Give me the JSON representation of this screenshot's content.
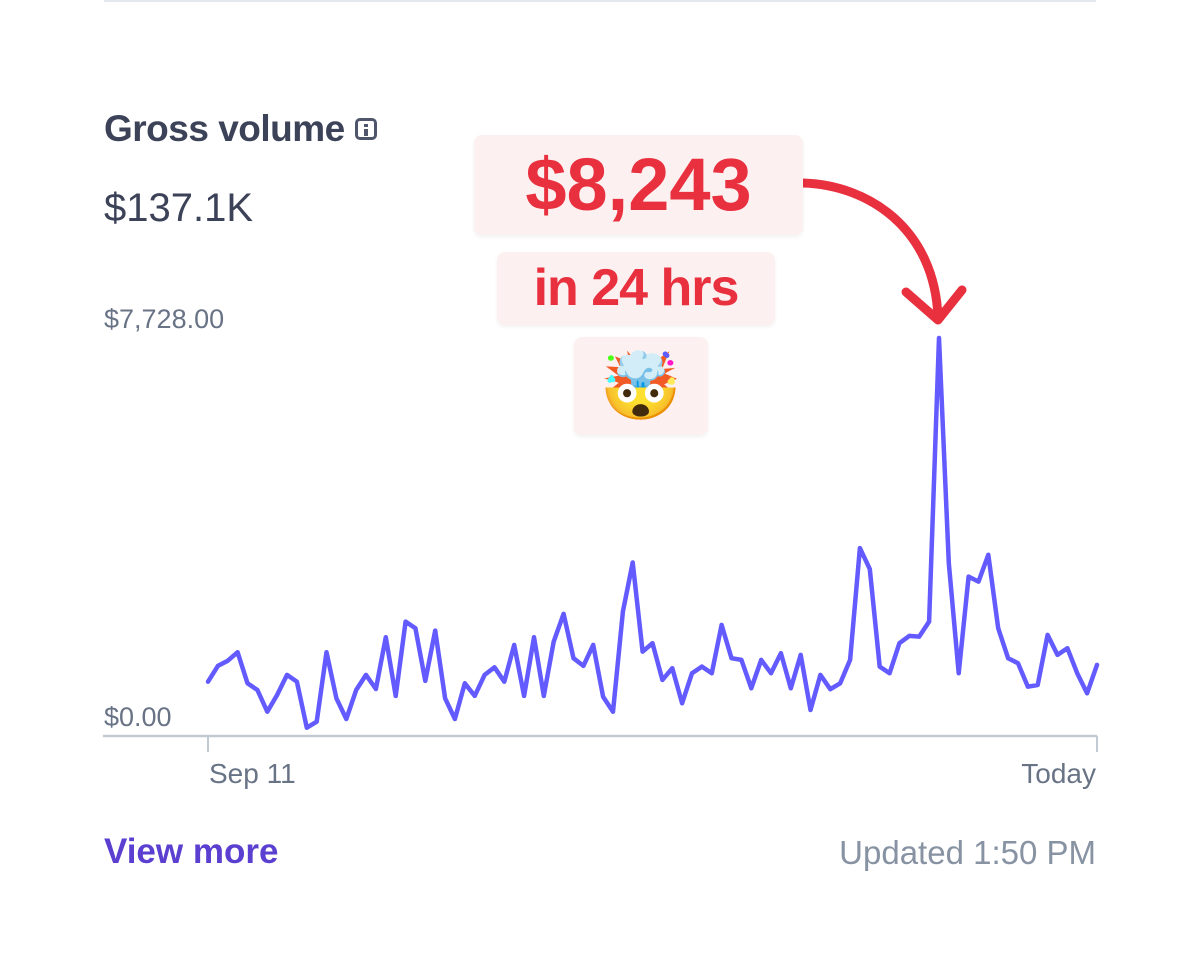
{
  "card": {
    "title": "Gross volume",
    "total": "$137.1K",
    "view_more": "View more",
    "updated": "Updated 1:50 PM"
  },
  "annotation": {
    "amount": "$8,243",
    "period": "in 24 hrs",
    "emoji": "🤯",
    "color": "#e8303f",
    "background": "#fdf0f0"
  },
  "chart_data": {
    "type": "line",
    "color": "#635bff",
    "y_labels": [
      "$7,728.00",
      "$0.00"
    ],
    "x_labels": [
      "Sep 11",
      "Today"
    ],
    "ylim": [
      0,
      7728
    ],
    "grid": false,
    "values": [
      1067,
      1372,
      1474,
      1637,
      1036,
      906,
      485,
      809,
      1197,
      1067,
      175,
      291,
      1637,
      745,
      343,
      906,
      1197,
      925,
      1928,
      790,
      2231,
      2103,
      1081,
      2056,
      745,
      343,
      1036,
      790,
      1197,
      1346,
      1067,
      1779,
      790,
      1928,
      790,
      1843,
      2380,
      1521,
      1372,
      1779,
      776,
      485,
      2425,
      3376,
      1649,
      1812,
      1100,
      1327,
      648,
      1230,
      1358,
      1230,
      2167,
      1521,
      1488,
      939,
      1488,
      1230,
      1618,
      939,
      1585,
      518,
      1197,
      920,
      1036,
      1488,
      3655,
      3248,
      1358,
      1230,
      1812,
      1954,
      1940,
      2231,
      7728,
      3364,
      1230,
      3104,
      3007,
      3525,
      2103,
      1521,
      1424,
      970,
      1003,
      1973,
      1585,
      1715,
      1230,
      842,
      1391
    ]
  }
}
